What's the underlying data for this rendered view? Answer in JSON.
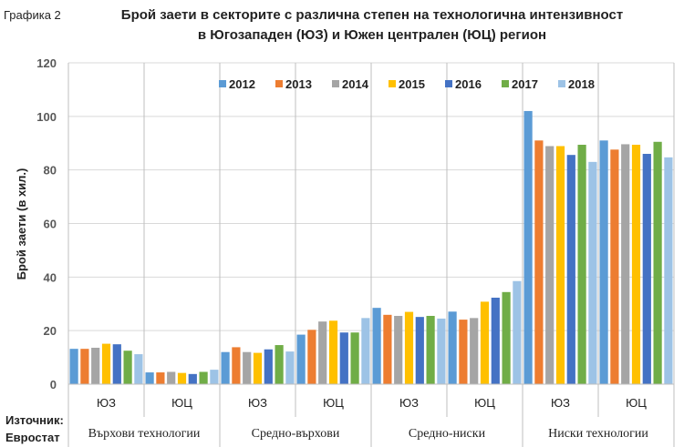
{
  "chart_data": {
    "type": "bar",
    "label": "Графика 2",
    "title": "Брой заети в секторите с различна степен на технологична интензивност",
    "subtitle": "в Югозападен (ЮЗ) и Южен централен (ЮЦ) регион",
    "ylabel": "Брой заети (в хил.)",
    "ylim": [
      0,
      120
    ],
    "yticks": [
      0,
      20,
      40,
      60,
      80,
      100,
      120
    ],
    "grid": true,
    "legend_position": "top-right",
    "source": [
      "Източник:",
      "Евростат"
    ],
    "groups": [
      "Върхови технологии",
      "Средно-върхови",
      "Средно-ниски",
      "Ниски технологии"
    ],
    "categories": [
      "ЮЗ",
      "ЮЦ",
      "ЮЗ",
      "ЮЦ",
      "ЮЗ",
      "ЮЦ",
      "ЮЗ",
      "ЮЦ"
    ],
    "series": [
      {
        "name": "2012",
        "color": "#5b9bd5",
        "values": [
          13.2,
          4.4,
          12.0,
          18.5,
          28.5,
          27.1,
          102.0,
          91.0
        ]
      },
      {
        "name": "2013",
        "color": "#ed7d31",
        "values": [
          13.2,
          4.4,
          13.8,
          20.3,
          25.9,
          24.1,
          91.0,
          87.6
        ]
      },
      {
        "name": "2014",
        "color": "#a5a5a5",
        "values": [
          13.6,
          4.6,
          12.0,
          23.4,
          25.5,
          24.7,
          88.9,
          89.6
        ]
      },
      {
        "name": "2015",
        "color": "#ffc000",
        "values": [
          15.1,
          4.2,
          11.7,
          23.7,
          27.0,
          30.8,
          88.9,
          89.4
        ]
      },
      {
        "name": "2016",
        "color": "#4472c4",
        "values": [
          14.9,
          3.8,
          13.0,
          19.3,
          25.1,
          32.3,
          85.6,
          86.0
        ]
      },
      {
        "name": "2017",
        "color": "#70ad47",
        "values": [
          12.5,
          4.6,
          14.6,
          19.3,
          25.5,
          34.4,
          89.4,
          90.5
        ]
      },
      {
        "name": "2018",
        "color": "#9dc3e6",
        "values": [
          11.2,
          5.4,
          12.2,
          24.7,
          24.5,
          38.5,
          83.0,
          84.7
        ]
      }
    ]
  }
}
